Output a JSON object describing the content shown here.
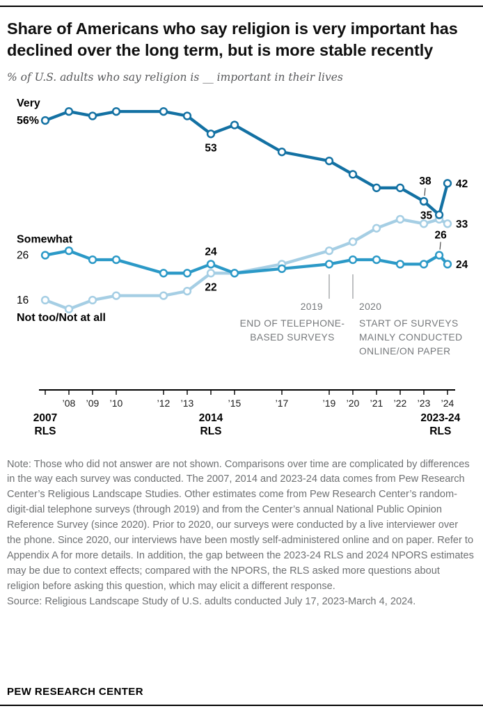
{
  "chart_data": {
    "type": "line",
    "title": "Share of Americans who say religion is very important has declined over the long term, but is more stable recently",
    "subtitle": "% of U.S. adults who say religion is __ important in their lives",
    "xlabel": "",
    "ylabel": "",
    "ylim": [
      10,
      62
    ],
    "xrange": [
      2007,
      2024
    ],
    "grid": false,
    "legend_position": "inline-left",
    "x": [
      "2007 RLS",
      "2008",
      "2009",
      "2010",
      "2012",
      "2013",
      "2014 RLS",
      "2015",
      "2017",
      "2019",
      "2020",
      "2021",
      "2022",
      "2023",
      "2023-24 RLS",
      "2024"
    ],
    "x_numeric": [
      2007,
      2008,
      2009,
      2010,
      2012,
      2013,
      2014,
      2015,
      2017,
      2019,
      2020,
      2021,
      2022,
      2023,
      2023.65,
      2024
    ],
    "series": [
      {
        "name": "Very",
        "color": "#1371a3",
        "values": [
          56,
          58,
          57,
          58,
          58,
          57,
          53,
          55,
          49,
          47,
          44,
          41,
          41,
          38,
          35,
          42
        ]
      },
      {
        "name": "Somewhat",
        "color": "#2b99c7",
        "values": [
          26,
          27,
          25,
          25,
          22,
          22,
          24,
          22,
          23,
          24,
          25,
          25,
          24,
          24,
          26,
          24
        ]
      },
      {
        "name": "Not too/Not at all",
        "color": "#a5cee4",
        "values": [
          16,
          14,
          16,
          17,
          17,
          18,
          22,
          22,
          24,
          27,
          29,
          32,
          34,
          33,
          34,
          33
        ]
      }
    ],
    "point_labels": [
      {
        "series": 0,
        "x": "2014 RLS",
        "text": "53",
        "pos": "below"
      },
      {
        "series": 1,
        "x": "2014 RLS",
        "text": "24",
        "pos": "above"
      },
      {
        "series": 2,
        "x": "2014 RLS",
        "text": "22",
        "pos": "below"
      },
      {
        "series": 0,
        "x": "2023",
        "text": "38",
        "pos": "above-leader"
      },
      {
        "series": 0,
        "x": "2023-24 RLS",
        "text": "35",
        "pos": "left"
      },
      {
        "series": 0,
        "x": "2024",
        "text": "42",
        "pos": "right"
      },
      {
        "series": 1,
        "x": "2023-24 RLS",
        "text": "26",
        "pos": "above-leader"
      },
      {
        "series": 1,
        "x": "2024",
        "text": "24",
        "pos": "right"
      },
      {
        "series": 2,
        "x": "2024",
        "text": "33",
        "pos": "right"
      }
    ],
    "edge_labels": [
      {
        "text": "Very",
        "v": 56,
        "dy": -20,
        "bold": true
      },
      {
        "text": "56%",
        "v": 56,
        "dy": 5,
        "bold": true
      },
      {
        "text": "Somewhat",
        "v": 26,
        "dy": -18,
        "bold": true
      },
      {
        "text": "26",
        "v": 26,
        "dy": 5,
        "bold": false
      },
      {
        "text": "16",
        "v": 16,
        "dy": 5,
        "bold": false
      },
      {
        "text": "Not too/Not at all",
        "v": 16,
        "dy": 30,
        "bold": true
      }
    ],
    "axis_ticks": [
      {
        "year": 2007
      },
      {
        "year": 2008,
        "label": "’08"
      },
      {
        "year": 2009,
        "label": "’09"
      },
      {
        "year": 2010,
        "label": "’10"
      },
      {
        "year": 2012,
        "label": "’12"
      },
      {
        "year": 2013,
        "label": "’13"
      },
      {
        "year": 2014
      },
      {
        "year": 2015,
        "label": "’15"
      },
      {
        "year": 2017,
        "label": "’17"
      },
      {
        "year": 2019,
        "label": "’19"
      },
      {
        "year": 2020,
        "label": "’20"
      },
      {
        "year": 2021,
        "label": "’21"
      },
      {
        "year": 2022,
        "label": "’22"
      },
      {
        "year": 2023,
        "label": "’23"
      },
      {
        "year": 2024,
        "label": "’24"
      }
    ],
    "rls_labels": [
      {
        "year": 2007,
        "line1": "2007",
        "line2": "RLS"
      },
      {
        "year": 2014,
        "line1": "2014",
        "line2": "RLS"
      },
      {
        "year": 2023.7,
        "line1": "2023-24",
        "line2": "RLS"
      }
    ],
    "callouts": [
      {
        "id": "c2019",
        "label": "2019",
        "lines": [
          "END OF TELEPHONE-",
          "BASED SURVEYS"
        ]
      },
      {
        "id": "c2020",
        "label": "2020",
        "lines": [
          "START OF SURVEYS",
          "MAINLY CONDUCTED",
          "ONLINE/ON PAPER"
        ]
      }
    ]
  },
  "notes": {
    "note": "Note: Those who did not answer are not shown. Comparisons over time are complicated by differences in the way each survey was conducted. The 2007, 2014 and 2023-24 data comes from Pew Research Center’s Religious Landscape Studies. Other estimates come from Pew Research Center’s random-digit-dial telephone surveys (through 2019) and from the Center’s annual National Public Opinion Reference Survey (since 2020). Prior to 2020, our surveys were conducted by a live interviewer over the phone. Since 2020, our interviews have been mostly self-administered online and on paper. Refer to Appendix A for more details. In addition, the gap between the 2023-24 RLS and 2024 NPORS estimates may be due to context effects; compared with the NPORS, the RLS asked more questions about religion before asking this question, which may elicit a different response.",
    "source": "Source: Religious Landscape Study of U.S. adults conducted July 17, 2023-March 4, 2024.",
    "footer": "PEW RESEARCH CENTER"
  }
}
